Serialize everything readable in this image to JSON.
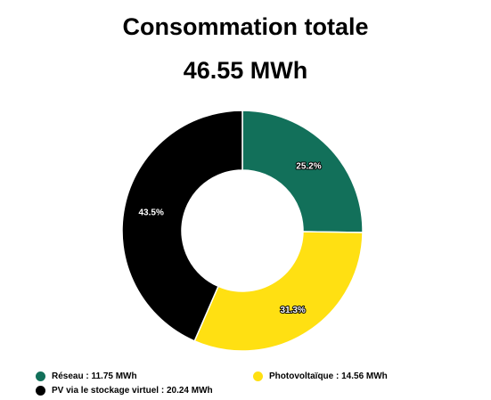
{
  "header": {
    "title": "Consommation totale",
    "total": "46.55 MWh"
  },
  "chart_data": {
    "type": "pie",
    "donut": true,
    "title": "Consommation totale",
    "subtitle": "46.55 MWh",
    "slices": [
      {
        "name": "Réseau",
        "value": 11.75,
        "unit": "MWh",
        "percent_label": "25.2%",
        "color": "#12705A"
      },
      {
        "name": "Photovoltaïque",
        "value": 14.56,
        "unit": "MWh",
        "percent_label": "31.3%",
        "color": "#FFE012"
      },
      {
        "name": "PV via le stockage virtuel",
        "value": 20.24,
        "unit": "MWh",
        "percent_label": "43.5%",
        "color": "#000000"
      }
    ],
    "legend_position": "bottom"
  },
  "legend": {
    "items": [
      {
        "text": "Réseau : 11.75 MWh",
        "color": "#12705A"
      },
      {
        "text": "Photovoltaïque : 14.56 MWh",
        "color": "#FFE012"
      },
      {
        "text": "PV via le stockage virtuel : 20.24 MWh",
        "color": "#000000"
      }
    ]
  }
}
